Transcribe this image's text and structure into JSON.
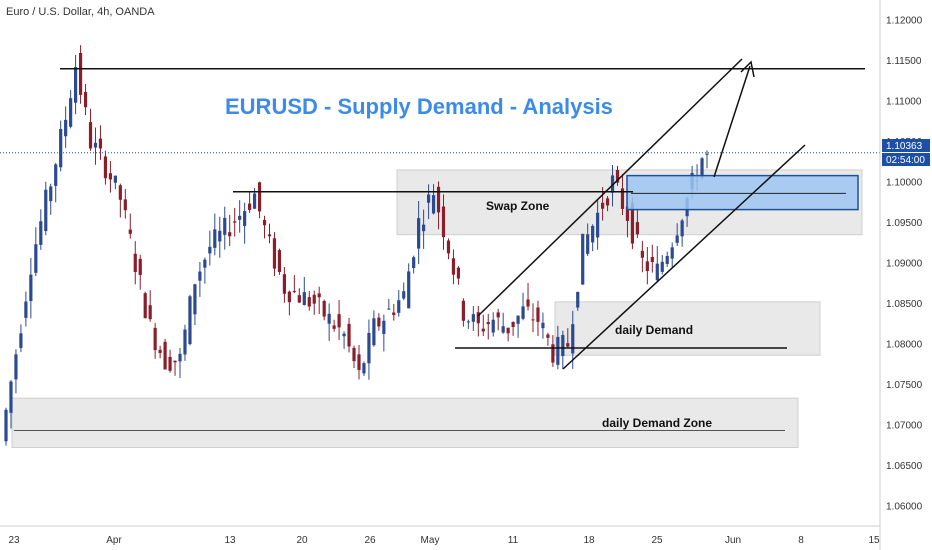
{
  "symbol_label": "Euro / U.S. Dollar, 4h, OANDA",
  "title": "EURUSD - Supply Demand - Analysis",
  "price_badge": {
    "value": "1.10363",
    "countdown": "02:54:00",
    "color": "#1e4fa8"
  },
  "colors": {
    "up": "#2c4a8f",
    "down": "#8a1f2b",
    "title": "#3d8be8",
    "zone": "#e9e9e9",
    "highlight": "#9ec6f2",
    "highlight_border": "#1f4f99"
  },
  "chart_data": {
    "type": "candlestick",
    "ylim": [
      1.0575,
      1.1225
    ],
    "y_ticks": [
      "1.06000",
      "1.06500",
      "1.07000",
      "1.07500",
      "1.08000",
      "1.08500",
      "1.09000",
      "1.09500",
      "1.10000",
      "1.10500",
      "1.11000",
      "1.11500",
      "1.12000"
    ],
    "x_ticks": [
      "23",
      "Apr",
      "13",
      "20",
      "26",
      "May",
      "11",
      "18",
      "25",
      "Jun",
      "8",
      "15"
    ],
    "last_price": 1.10363,
    "path_points": [
      [
        0,
        1.068
      ],
      [
        6,
        1.09
      ],
      [
        10,
        1.1
      ],
      [
        13,
        1.108
      ],
      [
        15,
        1.1145
      ],
      [
        18,
        1.105
      ],
      [
        21,
        1.102
      ],
      [
        24,
        1.098
      ],
      [
        27,
        1.09
      ],
      [
        30,
        1.082
      ],
      [
        33,
        1.078
      ],
      [
        36,
        1.078
      ],
      [
        39,
        1.088
      ],
      [
        42,
        1.092
      ],
      [
        45,
        1.094
      ],
      [
        48,
        1.096
      ],
      [
        51,
        1.0985
      ],
      [
        54,
        1.092
      ],
      [
        57,
        1.087
      ],
      [
        60,
        1.086
      ],
      [
        63,
        1.085
      ],
      [
        66,
        1.083
      ],
      [
        69,
        1.081
      ],
      [
        72,
        1.076
      ],
      [
        75,
        1.082
      ],
      [
        78,
        1.084
      ],
      [
        81,
        1.086
      ],
      [
        84,
        1.095
      ],
      [
        87,
        1.099
      ],
      [
        90,
        1.092
      ],
      [
        93,
        1.084
      ],
      [
        96,
        1.082
      ],
      [
        99,
        1.083
      ],
      [
        102,
        1.082
      ],
      [
        105,
        1.084
      ],
      [
        108,
        1.083
      ],
      [
        111,
        1.079
      ],
      [
        114,
        1.08
      ],
      [
        117,
        1.092
      ],
      [
        120,
        1.096
      ],
      [
        123,
        1.1
      ],
      [
        126,
        1.096
      ],
      [
        129,
        1.09
      ],
      [
        132,
        1.089
      ],
      [
        135,
        1.093
      ],
      [
        138,
        1.098
      ],
      [
        141,
        1.103
      ]
    ],
    "levels": [
      {
        "name": "top-resistance",
        "price": 1.114
      },
      {
        "name": "swap-level",
        "price": 1.0988
      },
      {
        "name": "daily-demand-level",
        "price": 1.0795
      },
      {
        "name": "daily-demand-zone-level",
        "price": 1.0693
      },
      {
        "name": "highlight-mid-level",
        "price": 1.0986
      }
    ],
    "zones": [
      {
        "name": "swap-zone",
        "label": "Swap Zone",
        "top": 1.1015,
        "bottom": 1.0935
      },
      {
        "name": "daily-demand",
        "label": "daily Demand",
        "top": 1.0852,
        "bottom": 1.0786
      },
      {
        "name": "daily-demand-zone",
        "label": "daily Demand Zone",
        "top": 1.0733,
        "bottom": 1.0672
      },
      {
        "name": "highlight-zone",
        "label": "",
        "top": 1.1008,
        "bottom": 1.0966
      }
    ]
  }
}
